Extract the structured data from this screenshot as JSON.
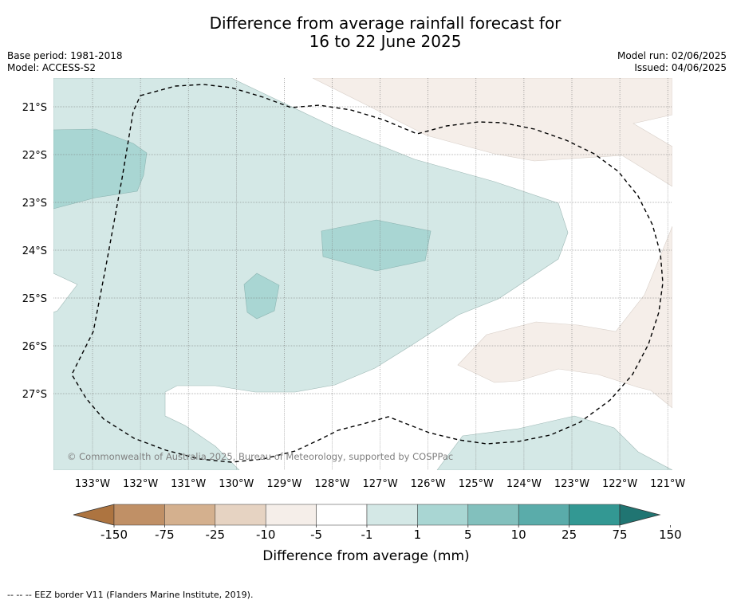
{
  "title_line1": "Difference from average rainfall forecast for",
  "title_line2": "16 to 22 June 2025",
  "meta_left": [
    "Base period: 1981-2018",
    "Model: ACCESS-S2"
  ],
  "meta_right": [
    "Model run: 02/06/2025",
    "Issued: 04/06/2025"
  ],
  "lat_labels": [
    "21°S",
    "22°S",
    "23°S",
    "24°S",
    "25°S",
    "26°S",
    "27°S"
  ],
  "lon_labels": [
    "133°W",
    "132°W",
    "131°W",
    "130°W",
    "129°W",
    "128°W",
    "127°W",
    "126°W",
    "125°W",
    "124°W",
    "123°W",
    "122°W",
    "121°W"
  ],
  "copyright": "© Commonwealth of Australia 2025, Bureau of Meteorology, supported by COSPPac",
  "colorbar": {
    "tick_labels": [
      "-150",
      "-75",
      "-25",
      "-10",
      "-5",
      "-1",
      "1",
      "5",
      "10",
      "25",
      "75",
      "150"
    ],
    "colors": [
      "#ad7440",
      "#c09066",
      "#d4b08e",
      "#e6d3c2",
      "#f5eee9",
      "#ffffff",
      "#d4e8e6",
      "#a9d6d3",
      "#82c0bd",
      "#5aacaa",
      "#339893",
      "#207572"
    ],
    "label": "Difference from average (mm)"
  },
  "regions": {
    "colors": {
      "light_teal": "#d4e8e6",
      "mid_teal": "#a9d6d3",
      "light_brown": "#f5eee9"
    }
  },
  "eez_color": "#000000",
  "footer": "--  --  -- EEZ border V11 (Flanders Marine Institute, 2019)."
}
